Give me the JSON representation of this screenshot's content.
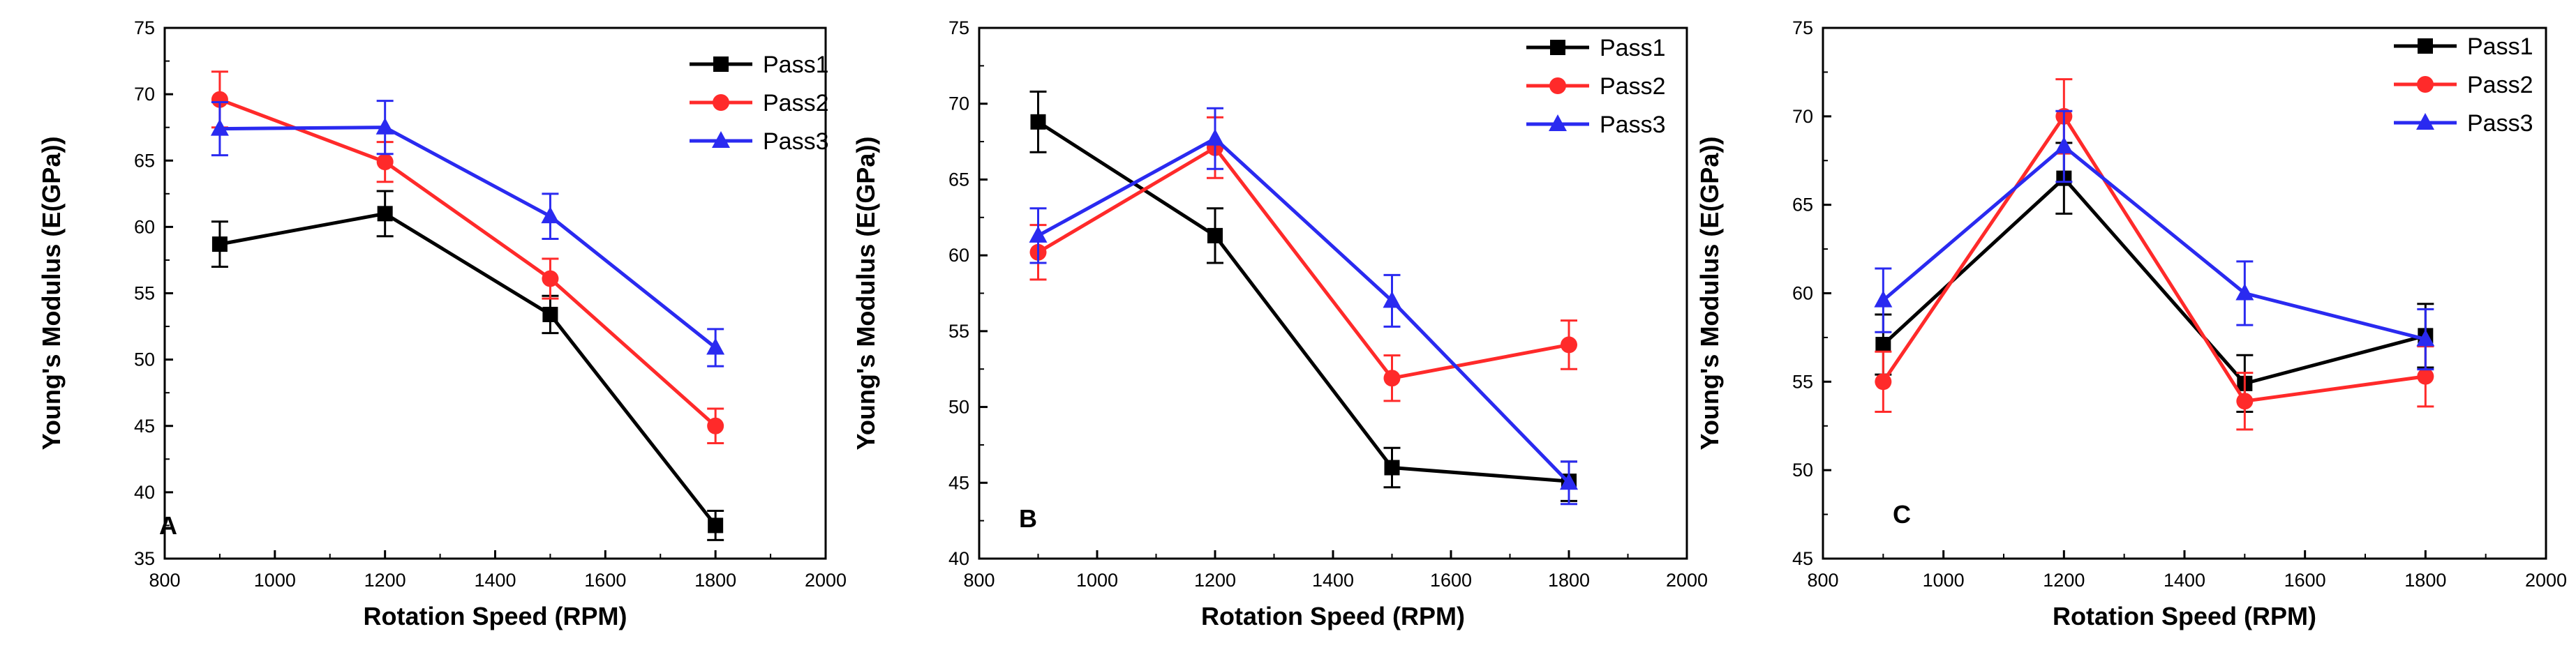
{
  "chart_data": [
    {
      "type": "line",
      "panel_label": "A",
      "xlabel": "Rotation Speed (RPM)",
      "ylabel": "Young's Modulus (E(GPa))",
      "xlim": [
        800,
        2000
      ],
      "ylim": [
        35,
        75
      ],
      "xticks": [
        800,
        1000,
        1200,
        1400,
        1600,
        1800,
        2000
      ],
      "yticks": [
        35,
        40,
        45,
        50,
        55,
        60,
        65,
        70,
        75
      ],
      "x": [
        900,
        1200,
        1500,
        1800
      ],
      "legend_position": "top-right",
      "series": [
        {
          "name": "Pass1",
          "color": "#000000",
          "marker": "square",
          "values": [
            58.7,
            61.0,
            53.4,
            37.5
          ],
          "errors": [
            1.7,
            1.7,
            1.4,
            1.1
          ]
        },
        {
          "name": "Pass2",
          "color": "#ff2a2a",
          "marker": "circle",
          "values": [
            69.6,
            64.9,
            56.1,
            45.0
          ],
          "errors": [
            2.1,
            1.5,
            1.5,
            1.3
          ]
        },
        {
          "name": "Pass3",
          "color": "#2a2af0",
          "marker": "triangle",
          "values": [
            67.4,
            67.5,
            60.8,
            50.9
          ],
          "errors": [
            2.0,
            2.0,
            1.7,
            1.4
          ]
        }
      ]
    },
    {
      "type": "line",
      "panel_label": "B",
      "xlabel": "Rotation Speed (RPM)",
      "ylabel": "Young's Modulus (E(GPa))",
      "xlim": [
        800,
        2000
      ],
      "ylim": [
        40,
        75
      ],
      "xticks": [
        800,
        1000,
        1200,
        1400,
        1600,
        1800,
        2000
      ],
      "yticks": [
        40,
        45,
        50,
        55,
        60,
        65,
        70,
        75
      ],
      "x": [
        900,
        1200,
        1500,
        1800
      ],
      "legend_position": "top-right",
      "series": [
        {
          "name": "Pass1",
          "color": "#000000",
          "marker": "square",
          "values": [
            68.8,
            61.3,
            46.0,
            45.1
          ],
          "errors": [
            2.0,
            1.8,
            1.3,
            1.3
          ]
        },
        {
          "name": "Pass2",
          "color": "#ff2a2a",
          "marker": "circle",
          "values": [
            60.2,
            67.1,
            51.9,
            54.1
          ],
          "errors": [
            1.8,
            2.0,
            1.5,
            1.6
          ]
        },
        {
          "name": "Pass3",
          "color": "#2a2af0",
          "marker": "triangle",
          "values": [
            61.3,
            67.7,
            57.0,
            45.0
          ],
          "errors": [
            1.8,
            2.0,
            1.7,
            1.4
          ]
        }
      ]
    },
    {
      "type": "line",
      "panel_label": "C",
      "xlabel": "Rotation Speed (RPM)",
      "ylabel": "Young's Modulus (E(GPa))",
      "xlim": [
        800,
        2000
      ],
      "ylim": [
        45,
        75
      ],
      "xticks": [
        800,
        1000,
        1200,
        1400,
        1600,
        1800,
        2000
      ],
      "yticks": [
        45,
        50,
        55,
        60,
        65,
        70,
        75
      ],
      "x": [
        900,
        1200,
        1500,
        1800
      ],
      "legend_position": "top-right",
      "series": [
        {
          "name": "Pass1",
          "color": "#000000",
          "marker": "square",
          "values": [
            57.1,
            66.5,
            54.9,
            57.6
          ],
          "errors": [
            1.7,
            2.0,
            1.6,
            1.8
          ]
        },
        {
          "name": "Pass2",
          "color": "#ff2a2a",
          "marker": "circle",
          "values": [
            55.0,
            70.0,
            53.9,
            55.3
          ],
          "errors": [
            1.7,
            2.1,
            1.6,
            1.7
          ]
        },
        {
          "name": "Pass3",
          "color": "#2a2af0",
          "marker": "triangle",
          "values": [
            59.6,
            68.3,
            60.0,
            57.4
          ],
          "errors": [
            1.8,
            2.0,
            1.8,
            1.7
          ]
        }
      ]
    }
  ]
}
